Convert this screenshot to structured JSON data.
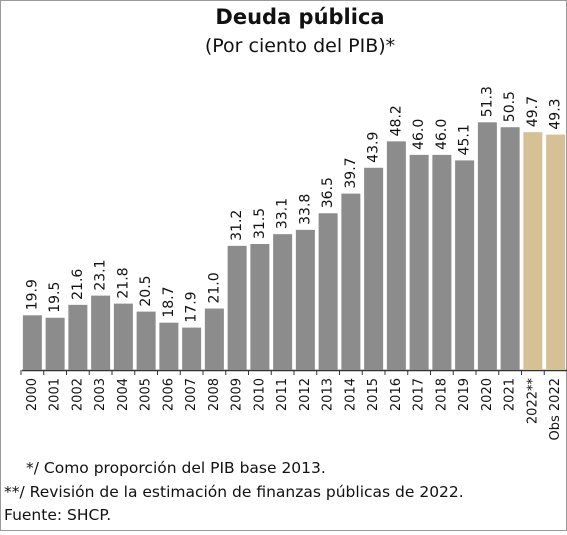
{
  "chart_data": {
    "type": "bar",
    "title": "Deuda pública",
    "subtitle": "(Por ciento del PIB)*",
    "categories": [
      "2000",
      "2001",
      "2002",
      "2003",
      "2004",
      "2005",
      "2006",
      "2007",
      "2008",
      "2009",
      "2010",
      "2011",
      "2012",
      "2013",
      "2014",
      "2015",
      "2016",
      "2017",
      "2018",
      "2019",
      "2020",
      "2021",
      "2022**",
      "Obs 2022"
    ],
    "values": [
      19.9,
      19.5,
      21.6,
      23.1,
      21.8,
      20.5,
      18.7,
      17.9,
      21.0,
      31.2,
      31.5,
      33.1,
      33.8,
      36.5,
      39.7,
      43.9,
      48.2,
      46.0,
      46.0,
      45.1,
      51.3,
      50.5,
      49.7,
      49.3
    ],
    "value_labels": [
      "19.9",
      "19.5",
      "21.6",
      "23.1",
      "21.8",
      "20.5",
      "18.7",
      "17.9",
      "21.0",
      "31.2",
      "31.5",
      "33.1",
      "33.8",
      "36.5",
      "39.7",
      "43.9",
      "48.2",
      "46.0",
      "46.0",
      "45.1",
      "51.3",
      "50.5",
      "49.7",
      "49.3"
    ],
    "colors": [
      "#8c8c8c",
      "#8c8c8c",
      "#8c8c8c",
      "#8c8c8c",
      "#8c8c8c",
      "#8c8c8c",
      "#8c8c8c",
      "#8c8c8c",
      "#8c8c8c",
      "#8c8c8c",
      "#8c8c8c",
      "#8c8c8c",
      "#8c8c8c",
      "#8c8c8c",
      "#8c8c8c",
      "#8c8c8c",
      "#8c8c8c",
      "#8c8c8c",
      "#8c8c8c",
      "#8c8c8c",
      "#8c8c8c",
      "#8c8c8c",
      "#d6c197",
      "#d6c197"
    ],
    "ylim": [
      11,
      52
    ],
    "notes": [
      "*/ Como proporción del PIB base 2013.",
      "**/ Revisión de la estimación de finanzas públicas de 2022.",
      "Fuente: SHCP."
    ]
  }
}
